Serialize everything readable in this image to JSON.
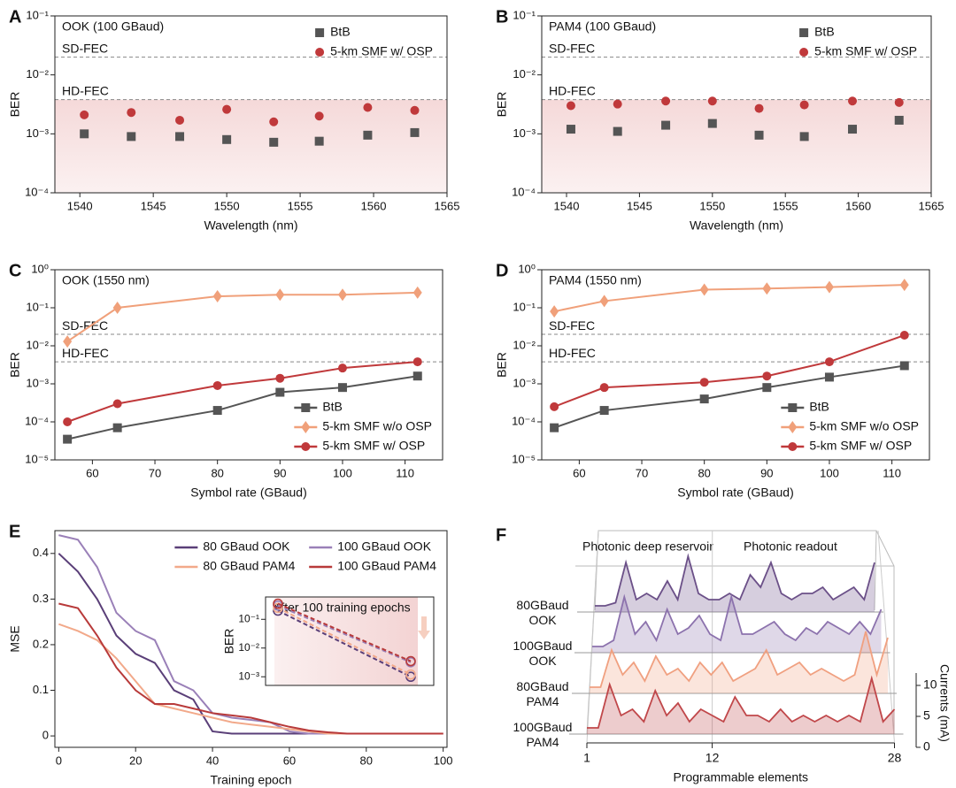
{
  "chart_data": [
    {
      "type": "scatter",
      "panel": "A",
      "title": "OOK (100 GBaud)",
      "xlabel": "Wavelength (nm)",
      "ylabel": "BER",
      "log_y": true,
      "xlim": [
        1538.3,
        1565
      ],
      "xticks": [
        1540,
        1545,
        1550,
        1555,
        1560,
        1565
      ],
      "ylim": [
        0.0001,
        0.1
      ],
      "yticks": [
        {
          "value": 0.0001,
          "label": "10⁻⁴"
        },
        {
          "value": 0.001,
          "label": "10⁻³"
        },
        {
          "value": 0.01,
          "label": "10⁻²"
        },
        {
          "value": 0.1,
          "label": "10⁻¹"
        }
      ],
      "thresholds": [
        {
          "label": "SD-FEC",
          "value": 0.02
        },
        {
          "label": "HD-FEC",
          "value": 0.0038
        }
      ],
      "shade": true,
      "legend": "upper right",
      "series": [
        {
          "name": "BtB",
          "color": "#555555",
          "marker": "square",
          "x": [
            1540.3,
            1543.5,
            1546.8,
            1550,
            1553.2,
            1556.3,
            1559.6,
            1562.8
          ],
          "values": [
            0.001,
            0.0009,
            0.0009,
            0.0008,
            0.00072,
            0.00075,
            0.00095,
            0.00105
          ]
        },
        {
          "name": "5-km SMF w/ OSP",
          "color": "#c0393b",
          "marker": "circle",
          "x": [
            1540.3,
            1543.5,
            1546.8,
            1550,
            1553.2,
            1556.3,
            1559.6,
            1562.8
          ],
          "values": [
            0.0021,
            0.0023,
            0.0017,
            0.0026,
            0.0016,
            0.002,
            0.0028,
            0.0025
          ]
        }
      ]
    },
    {
      "type": "scatter",
      "panel": "B",
      "title": "PAM4 (100 GBaud)",
      "xlabel": "Wavelength (nm)",
      "ylabel": "BER",
      "log_y": true,
      "xlim": [
        1538.3,
        1565
      ],
      "xticks": [
        1540,
        1545,
        1550,
        1555,
        1560,
        1565
      ],
      "ylim": [
        0.0001,
        0.1
      ],
      "yticks": [
        {
          "value": 0.0001,
          "label": "10⁻⁴"
        },
        {
          "value": 0.001,
          "label": "10⁻³"
        },
        {
          "value": 0.01,
          "label": "10⁻²"
        },
        {
          "value": 0.1,
          "label": "10⁻¹"
        }
      ],
      "thresholds": [
        {
          "label": "SD-FEC",
          "value": 0.02
        },
        {
          "label": "HD-FEC",
          "value": 0.0038
        }
      ],
      "shade": true,
      "legend": "upper right",
      "series": [
        {
          "name": "BtB",
          "color": "#555555",
          "marker": "square",
          "x": [
            1540.3,
            1543.5,
            1546.8,
            1550,
            1553.2,
            1556.3,
            1559.6,
            1562.8
          ],
          "values": [
            0.0012,
            0.0011,
            0.0014,
            0.0015,
            0.00095,
            0.0009,
            0.0012,
            0.0017
          ]
        },
        {
          "name": "5-km SMF w/ OSP",
          "color": "#c0393b",
          "marker": "circle",
          "x": [
            1540.3,
            1543.5,
            1546.8,
            1550,
            1553.2,
            1556.3,
            1559.6,
            1562.8
          ],
          "values": [
            0.003,
            0.0032,
            0.0036,
            0.0036,
            0.0027,
            0.0031,
            0.0036,
            0.0034
          ]
        }
      ]
    },
    {
      "type": "line",
      "panel": "C",
      "title": "OOK (1550 nm)",
      "xlabel": "Symbol rate (GBaud)",
      "ylabel": "BER",
      "log_y": true,
      "xlim": [
        54,
        116
      ],
      "xticks": [
        60,
        70,
        80,
        90,
        100,
        110
      ],
      "ylim": [
        1e-05,
        1
      ],
      "yticks": [
        {
          "value": 1e-05,
          "label": "10⁻⁵"
        },
        {
          "value": 0.0001,
          "label": "10⁻⁴"
        },
        {
          "value": 0.001,
          "label": "10⁻³"
        },
        {
          "value": 0.01,
          "label": "10⁻²"
        },
        {
          "value": 0.1,
          "label": "10⁻¹"
        },
        {
          "value": 1,
          "label": "10⁰"
        }
      ],
      "thresholds": [
        {
          "label": "SD-FEC",
          "value": 0.02
        },
        {
          "label": "HD-FEC",
          "value": 0.0038
        }
      ],
      "legend": "lower right",
      "x": [
        56,
        64,
        80,
        90,
        100,
        112
      ],
      "series": [
        {
          "name": "BtB",
          "color": "#555555",
          "marker": "square",
          "values": [
            3.5e-05,
            7e-05,
            0.0002,
            0.0006,
            0.0008,
            0.0016
          ]
        },
        {
          "name": "5-km SMF w/o OSP",
          "color": "#f0a07a",
          "marker": "diamond",
          "values": [
            0.013,
            0.1,
            0.2,
            0.22,
            0.22,
            0.25
          ]
        },
        {
          "name": "5-km SMF w/ OSP",
          "color": "#c0393b",
          "marker": "circle",
          "values": [
            0.0001,
            0.0003,
            0.0009,
            0.0014,
            0.0026,
            0.0038
          ]
        }
      ]
    },
    {
      "type": "line",
      "panel": "D",
      "title": "PAM4 (1550 nm)",
      "xlabel": "Symbol rate (GBaud)",
      "ylabel": "BER",
      "log_y": true,
      "xlim": [
        54,
        116
      ],
      "xticks": [
        60,
        70,
        80,
        90,
        100,
        110
      ],
      "ylim": [
        1e-05,
        1
      ],
      "yticks": [
        {
          "value": 1e-05,
          "label": "10⁻⁵"
        },
        {
          "value": 0.0001,
          "label": "10⁻⁴"
        },
        {
          "value": 0.001,
          "label": "10⁻³"
        },
        {
          "value": 0.01,
          "label": "10⁻²"
        },
        {
          "value": 0.1,
          "label": "10⁻¹"
        },
        {
          "value": 1,
          "label": "10⁰"
        }
      ],
      "thresholds": [
        {
          "label": "SD-FEC",
          "value": 0.02
        },
        {
          "label": "HD-FEC",
          "value": 0.0038
        }
      ],
      "legend": "lower right",
      "x": [
        56,
        64,
        80,
        90,
        100,
        112
      ],
      "series": [
        {
          "name": "BtB",
          "color": "#555555",
          "marker": "square",
          "values": [
            7e-05,
            0.0002,
            0.0004,
            0.0008,
            0.0015,
            0.003
          ]
        },
        {
          "name": "5-km SMF w/o OSP",
          "color": "#f0a07a",
          "marker": "diamond",
          "values": [
            0.08,
            0.15,
            0.3,
            0.32,
            0.35,
            0.4
          ]
        },
        {
          "name": "5-km SMF w/ OSP",
          "color": "#c0393b",
          "marker": "circle",
          "values": [
            0.00025,
            0.0008,
            0.0011,
            0.0016,
            0.0038,
            0.019
          ]
        }
      ]
    },
    {
      "type": "line",
      "panel": "E",
      "xlabel": "Training epoch",
      "ylabel": "MSE",
      "xlim": [
        -1,
        101
      ],
      "xticks": [
        0,
        20,
        40,
        60,
        80,
        100
      ],
      "ylim": [
        -0.025,
        0.45
      ],
      "yticks": [
        0,
        0.1,
        0.2,
        0.3,
        0.4
      ],
      "legend": "upper right",
      "legend_columns": 2,
      "x": [
        0,
        5,
        10,
        15,
        20,
        25,
        30,
        35,
        40,
        45,
        50,
        55,
        60,
        65,
        70,
        75,
        80,
        85,
        90,
        95,
        100
      ],
      "series": [
        {
          "name": "80 GBaud OOK",
          "color": "#5a3f78",
          "values": [
            0.4,
            0.36,
            0.3,
            0.22,
            0.18,
            0.16,
            0.1,
            0.08,
            0.01,
            0.005,
            0.005,
            0.005,
            0.005,
            0.005,
            0.005,
            0.005,
            0.005,
            0.005,
            0.005,
            0.005,
            0.005
          ]
        },
        {
          "name": "100 GBaud OOK",
          "color": "#9a80b8",
          "values": [
            0.44,
            0.43,
            0.37,
            0.27,
            0.23,
            0.21,
            0.12,
            0.1,
            0.05,
            0.04,
            0.035,
            0.03,
            0.01,
            0.005,
            0.005,
            0.005,
            0.005,
            0.005,
            0.005,
            0.005,
            0.005
          ]
        },
        {
          "name": "80 GBaud PAM4",
          "color": "#f2a98a",
          "values": [
            0.245,
            0.23,
            0.21,
            0.17,
            0.12,
            0.07,
            0.06,
            0.05,
            0.04,
            0.03,
            0.025,
            0.02,
            0.015,
            0.01,
            0.005,
            0.005,
            0.005,
            0.005,
            0.005,
            0.005,
            0.005
          ]
        },
        {
          "name": "100 GBaud PAM4",
          "color": "#b83a3a",
          "values": [
            0.29,
            0.28,
            0.22,
            0.15,
            0.1,
            0.07,
            0.07,
            0.06,
            0.05,
            0.045,
            0.04,
            0.03,
            0.02,
            0.012,
            0.008,
            0.005,
            0.005,
            0.005,
            0.005,
            0.005,
            0.005
          ]
        }
      ]
    },
    {
      "type": "line",
      "title": "After 100 training epochs",
      "ylabel": "BER",
      "log_y": true,
      "dashed": true,
      "ylim": [
        0.0005,
        0.6
      ],
      "yticks": [
        {
          "value": 0.001,
          "label": "10⁻³"
        },
        {
          "value": 0.01,
          "label": "10⁻²"
        },
        {
          "value": 0.1,
          "label": "10⁻¹"
        }
      ],
      "categories": [
        null,
        null
      ],
      "series": [
        {
          "color": "#5a3f78",
          "marker": "open-circle",
          "values": [
            0.2,
            0.001
          ]
        },
        {
          "color": "#9a80b8",
          "marker": "open-circle",
          "values": [
            0.3,
            0.0032
          ]
        },
        {
          "color": "#f2a98a",
          "marker": "open-circle",
          "values": [
            0.25,
            0.0012
          ]
        },
        {
          "color": "#b83a3a",
          "marker": "open-circle",
          "values": [
            0.35,
            0.0035
          ]
        }
      ]
    },
    {
      "type": "waterfall",
      "panel": "F",
      "annotations": [
        "Photonic deep reservoir",
        "Photonic readout"
      ],
      "xlabel": "Programmable elements",
      "zlabel": "Currents (mA)",
      "x": [
        1,
        2,
        3,
        4,
        5,
        6,
        7,
        8,
        9,
        10,
        11,
        12,
        13,
        14,
        15,
        16,
        17,
        18,
        19,
        20,
        21,
        22,
        23,
        24,
        25,
        26,
        27,
        28
      ],
      "xlim": [
        1,
        28
      ],
      "xticks": [
        1,
        12,
        28
      ],
      "zlim": [
        0,
        12
      ],
      "zticks": [
        0,
        5,
        10
      ],
      "series": [
        {
          "name": "80GBaud OOK",
          "color": "#6b5088",
          "values": [
            1,
            1,
            1.5,
            8,
            2,
            3,
            2,
            5,
            2,
            9,
            3,
            2,
            2,
            3,
            2,
            6,
            4,
            8,
            3,
            2,
            3,
            3,
            4,
            2,
            3,
            4,
            2,
            8
          ]
        },
        {
          "name": "100GBaud OOK",
          "color": "#8c72ad",
          "values": [
            1,
            1,
            2,
            9,
            3,
            5,
            2,
            7,
            3,
            4,
            6,
            3,
            2,
            9,
            3,
            3,
            4,
            5,
            3,
            2,
            4,
            3,
            5,
            4,
            3,
            5,
            3,
            7
          ]
        },
        {
          "name": "80GBaud PAM4",
          "color": "#f0a080",
          "values": [
            1,
            1,
            7,
            3,
            5,
            2,
            6,
            3,
            4,
            2,
            5,
            3,
            5,
            2,
            3,
            4,
            7,
            3,
            4,
            5,
            3,
            4,
            3,
            2,
            3,
            10,
            3,
            9
          ]
        },
        {
          "name": "100GBaud PAM4",
          "color": "#c0474a",
          "values": [
            1,
            1,
            8,
            3,
            4,
            2,
            7,
            3,
            5,
            2,
            4,
            3,
            2,
            6,
            3,
            3,
            2,
            4,
            2,
            3,
            2,
            3,
            2,
            3,
            2,
            9,
            2,
            4
          ]
        }
      ]
    }
  ]
}
